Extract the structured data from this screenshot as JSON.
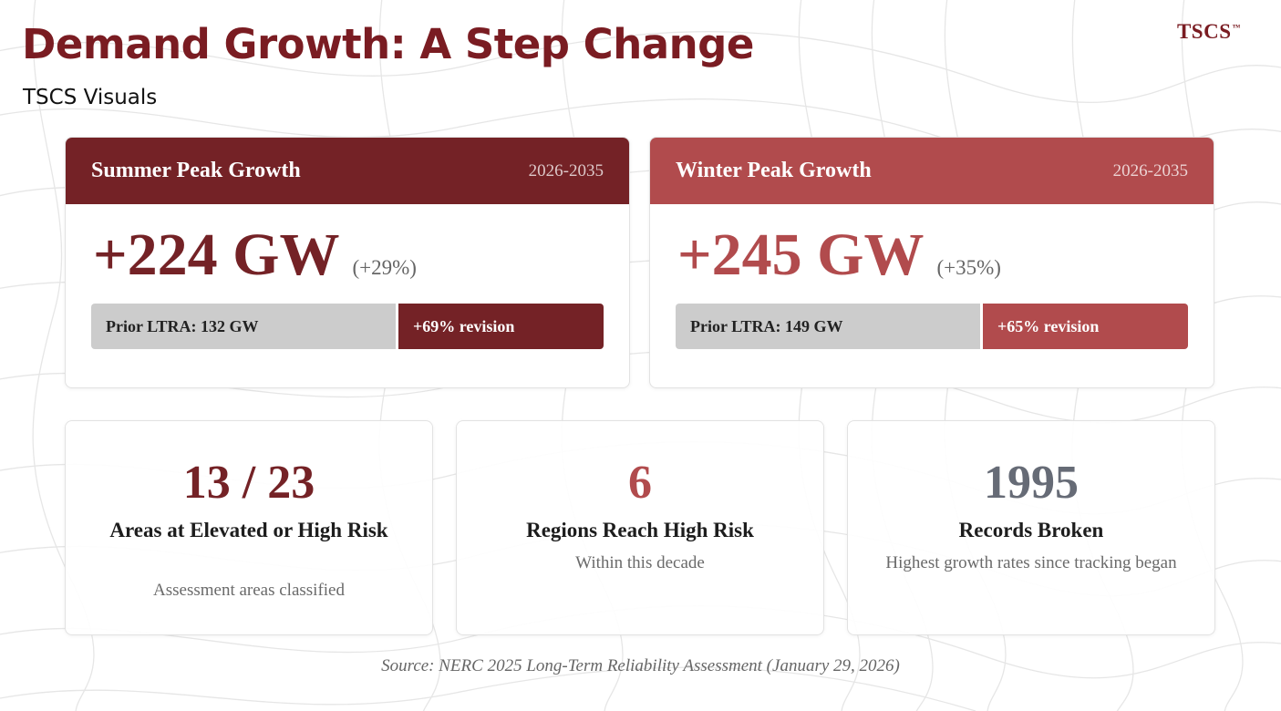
{
  "header": {
    "title": "Demand Growth: A Step Change",
    "subtitle": "TSCS Visuals",
    "logo_text": "TSCS",
    "logo_mark": "™"
  },
  "growth_cards": [
    {
      "title": "Summer Peak Growth",
      "period": "2026-2035",
      "value": "+224 GW",
      "percent": "(+29%)",
      "prior_label": "Prior LTRA: 132 GW",
      "revision_label": "+69% revision",
      "color": "#742226"
    },
    {
      "title": "Winter Peak Growth",
      "period": "2026-2035",
      "value": "+245 GW",
      "percent": "(+35%)",
      "prior_label": "Prior LTRA: 149 GW",
      "revision_label": "+65% revision",
      "color": "#b14b4d"
    }
  ],
  "stats": [
    {
      "value": "13 / 23",
      "label": "Areas at Elevated or High Risk",
      "note": "Assessment areas classified",
      "color": "#742226"
    },
    {
      "value": "6",
      "label": "Regions Reach High Risk",
      "note": "Within this decade",
      "color": "#b14b4d"
    },
    {
      "value": "1995",
      "label": "Records Broken",
      "note": "Highest growth rates since tracking began",
      "color": "#666b76"
    }
  ],
  "source": "Source: NERC 2025 Long-Term Reliability Assessment (January 29, 2026)"
}
